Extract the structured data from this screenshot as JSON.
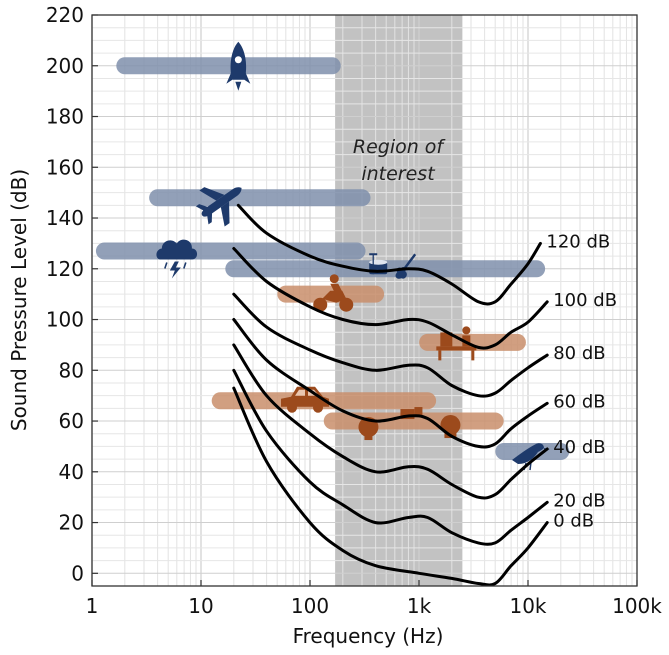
{
  "chart_data": {
    "type": "line",
    "title": "",
    "xlabel": "Frequency (Hz)",
    "ylabel": "Sound Pressure Level (dB)",
    "x_scale": "log",
    "xlim": [
      1,
      100000
    ],
    "ylim": [
      -5,
      220
    ],
    "x_ticks": [
      {
        "value": 1,
        "label": "1"
      },
      {
        "value": 10,
        "label": "10"
      },
      {
        "value": 100,
        "label": "100"
      },
      {
        "value": 1000,
        "label": "1k"
      },
      {
        "value": 10000,
        "label": "10k"
      },
      {
        "value": 100000,
        "label": "100k"
      }
    ],
    "y_ticks": [
      0,
      20,
      40,
      60,
      80,
      100,
      120,
      140,
      160,
      180,
      200,
      220
    ],
    "grid": true,
    "region_of_interest": {
      "x_range": [
        170,
        2500
      ],
      "label_line1": "Region of",
      "label_line2": "interest",
      "color": "#c2c2c2"
    },
    "series": [
      {
        "name": "0 dB",
        "points": [
          [
            20,
            73
          ],
          [
            40,
            44
          ],
          [
            100,
            20
          ],
          [
            200,
            9
          ],
          [
            400,
            3
          ],
          [
            1000,
            0
          ],
          [
            2000,
            -2
          ],
          [
            3500,
            -4
          ],
          [
            5000,
            -4
          ],
          [
            7000,
            3
          ],
          [
            10000,
            10
          ],
          [
            15000,
            20
          ]
        ]
      },
      {
        "name": "20 dB",
        "points": [
          [
            20,
            80
          ],
          [
            40,
            56
          ],
          [
            100,
            36
          ],
          [
            200,
            27
          ],
          [
            400,
            20
          ],
          [
            800,
            22
          ],
          [
            1200,
            22
          ],
          [
            2000,
            16
          ],
          [
            3500,
            12
          ],
          [
            5000,
            12
          ],
          [
            7000,
            17
          ],
          [
            10000,
            22
          ],
          [
            15000,
            28
          ]
        ]
      },
      {
        "name": "40 dB",
        "points": [
          [
            20,
            90
          ],
          [
            40,
            70
          ],
          [
            100,
            55
          ],
          [
            200,
            46
          ],
          [
            400,
            40
          ],
          [
            800,
            42
          ],
          [
            1200,
            41
          ],
          [
            2000,
            35
          ],
          [
            3500,
            30
          ],
          [
            5000,
            31
          ],
          [
            7000,
            37
          ],
          [
            10000,
            43
          ],
          [
            15000,
            49
          ]
        ]
      },
      {
        "name": "60 dB",
        "points": [
          [
            20,
            100
          ],
          [
            40,
            84
          ],
          [
            100,
            72
          ],
          [
            200,
            64
          ],
          [
            400,
            60
          ],
          [
            800,
            62
          ],
          [
            1200,
            61
          ],
          [
            2000,
            54
          ],
          [
            3500,
            50
          ],
          [
            5000,
            51
          ],
          [
            7000,
            57
          ],
          [
            10000,
            62
          ],
          [
            15000,
            67
          ]
        ]
      },
      {
        "name": "80 dB",
        "points": [
          [
            20,
            110
          ],
          [
            40,
            97
          ],
          [
            100,
            88
          ],
          [
            200,
            83
          ],
          [
            400,
            80
          ],
          [
            800,
            82
          ],
          [
            1200,
            81
          ],
          [
            2000,
            74
          ],
          [
            3500,
            70
          ],
          [
            5000,
            71
          ],
          [
            7000,
            76
          ],
          [
            10000,
            81
          ],
          [
            15000,
            86
          ]
        ]
      },
      {
        "name": "100 dB",
        "points": [
          [
            20,
            128
          ],
          [
            40,
            115
          ],
          [
            100,
            105
          ],
          [
            200,
            100
          ],
          [
            400,
            98
          ],
          [
            800,
            100
          ],
          [
            1200,
            99
          ],
          [
            2000,
            94
          ],
          [
            3500,
            89
          ],
          [
            5000,
            90
          ],
          [
            7000,
            95
          ],
          [
            10000,
            99
          ],
          [
            15000,
            107
          ]
        ]
      },
      {
        "name": "120 dB",
        "points": [
          [
            22,
            145
          ],
          [
            40,
            134
          ],
          [
            100,
            125
          ],
          [
            200,
            121
          ],
          [
            400,
            119
          ],
          [
            800,
            120
          ],
          [
            1200,
            119
          ],
          [
            2000,
            114
          ],
          [
            3500,
            107
          ],
          [
            5000,
            107
          ],
          [
            7000,
            114
          ],
          [
            10000,
            122
          ],
          [
            13000,
            130
          ]
        ]
      }
    ],
    "label_color_blue": "#7f8fab",
    "label_color_orange": "#c98e6b",
    "icon_color_blue": "#1e3a6b",
    "icon_color_orange": "#9c4a1c",
    "source_bands": [
      {
        "icon": "rocket-icon",
        "x_range": [
          2,
          160
        ],
        "level": 200,
        "color": "blue",
        "icon_freq": 22,
        "icon_level": 200
      },
      {
        "icon": "airplane-icon",
        "x_range": [
          4,
          300
        ],
        "level": 148,
        "color": "blue",
        "icon_freq": 15,
        "icon_level": 146
      },
      {
        "icon": "thunderstorm-icon",
        "x_range": [
          1.3,
          270
        ],
        "level": 127,
        "color": "blue",
        "icon_freq": 6,
        "icon_level": 126
      },
      {
        "icon": "drums-guitar-icon",
        "x_range": [
          20,
          12000
        ],
        "level": 120,
        "color": "blue",
        "icon_freq": 580,
        "icon_level": 121
      },
      {
        "icon": "motorcycle-icon",
        "x_range": [
          60,
          400
        ],
        "level": 110,
        "color": "orange",
        "icon_freq": 160,
        "icon_level": 109
      },
      {
        "icon": "sewing-machine-icon",
        "x_range": [
          1200,
          8000
        ],
        "level": 91,
        "color": "orange",
        "icon_freq": 2200,
        "icon_level": 91
      },
      {
        "icon": "car-icon",
        "x_range": [
          15,
          1200
        ],
        "level": 68,
        "color": "orange",
        "icon_freq": 90,
        "icon_level": 68
      },
      {
        "icon": "appliance-icon",
        "x_range": [
          160,
          5000
        ],
        "level": 60,
        "color": "orange",
        "icon_freq": 800,
        "icon_level": 60
      },
      {
        "icon": "bird-icon",
        "x_range": [
          6000,
          20000
        ],
        "level": 48,
        "color": "blue",
        "icon_freq": 10000,
        "icon_level": 47
      }
    ]
  }
}
